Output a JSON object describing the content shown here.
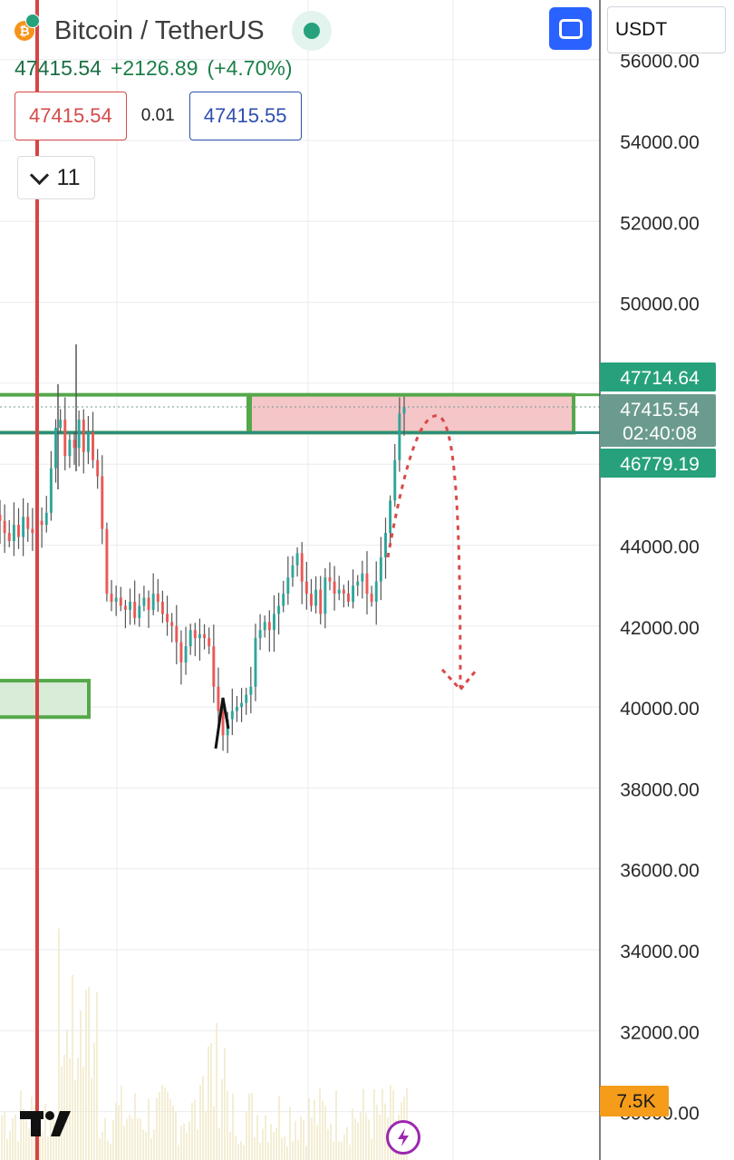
{
  "header": {
    "pair_title": "Bitcoin / TetherUS",
    "last_price": "47415.54",
    "change": "+2126.89",
    "change_pct": "(+4.70%)",
    "sell_price": "47415.54",
    "spread": "0.01",
    "buy_price": "47415.55",
    "indicators_count": "11",
    "currency": "USDT",
    "icons": {
      "coin": "bitcoin-icon",
      "status": "market-status-dot-icon",
      "collapse": "chevron-down-icon",
      "fullscreen": "fullscreen-icon",
      "logo": "tradingview-logo",
      "bolt": "lightning-icon"
    }
  },
  "chart_data": {
    "type": "candlestick",
    "y_axis": {
      "ticks": [
        56000,
        54000,
        52000,
        50000,
        48000,
        46000,
        44000,
        42000,
        40000,
        38000,
        36000,
        34000,
        32000,
        30000
      ],
      "visible_tick_labels": [
        "54000.00",
        "52000.00",
        "50000.00",
        "44000.00",
        "42000.00",
        "40000.00",
        "38000.00",
        "36000.00",
        "34000.00",
        "32000.00"
      ],
      "range": [
        29800,
        57000
      ],
      "position": "right"
    },
    "series": [
      {
        "values": [
          44600,
          44300,
          44100,
          44500,
          44200,
          44700,
          44400,
          44300,
          44600,
          44500,
          44800,
          45900,
          46900,
          47100,
          46200,
          46600,
          46400,
          47100,
          46300,
          46800,
          46100,
          45700,
          44400,
          42800,
          42600,
          42700,
          42500,
          42400,
          42600,
          42200,
          42500,
          42700,
          42400,
          42800,
          42600,
          42300,
          42100,
          42000,
          41600,
          41100,
          41500,
          41900,
          41700,
          41800,
          41700,
          41500,
          40500,
          39900,
          39300,
          39700,
          39900,
          40000,
          40100,
          40300,
          40500,
          41700,
          41900,
          42100,
          41900,
          42300,
          42500,
          42800,
          43200,
          43500,
          43800,
          43100,
          42800,
          42500,
          42900,
          42300,
          43200,
          43100,
          42800,
          42900,
          42800,
          42600,
          43000,
          43100,
          43300,
          42800,
          42600,
          43100,
          43700,
          44300,
          45100,
          46100,
          47250,
          47415.54
        ]
      }
    ],
    "price_labels": {
      "upper_level": "47714.64",
      "current_price": "47415.54",
      "countdown": "02:40:08",
      "lower_level": "46779.19",
      "volume": "7.5K"
    },
    "annotations": {
      "upper_level": 47714.64,
      "lower_level": 46779.19,
      "current_price": 47415.54,
      "resistance_zone": [
        46779.19,
        47714.64
      ],
      "demand_zone": [
        39750,
        40650
      ],
      "projection_peak": 47200,
      "projection_target": 40700
    },
    "colors": {
      "up": "#26a69a",
      "down": "#ef5350",
      "candle": "#555555",
      "zone_red": "#f5c6c8",
      "zone_green": "#d8ecd8",
      "zone_border": "#55a84a",
      "level_line": "#2c8c7f",
      "vertical_marker": "#d64545",
      "projection": "#d94a4a",
      "volume": "#f1e9c6",
      "label_green": "#26a17b",
      "label_price": "#6b9b8f",
      "label_volume": "#f59c1a"
    },
    "grid": true
  }
}
